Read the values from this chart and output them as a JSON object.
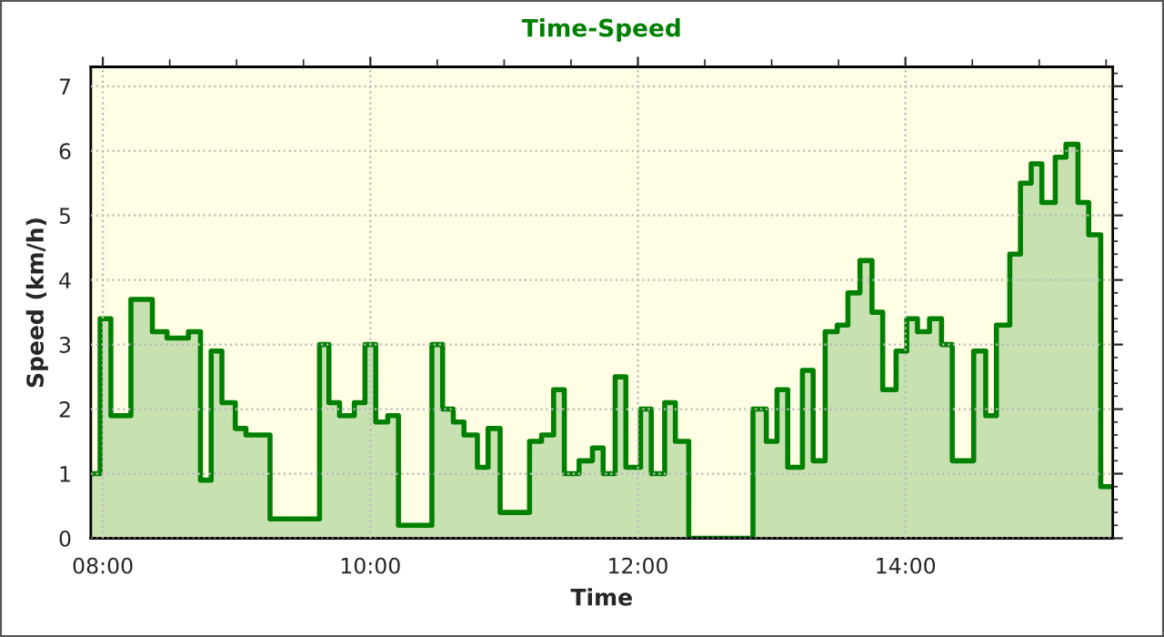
{
  "chart_data": {
    "type": "step",
    "title": "Time-Speed",
    "xlabel": "Time",
    "ylabel": "Speed (km/h)",
    "x": [
      7.91,
      7.98,
      8.06,
      8.21,
      8.37,
      8.48,
      8.56,
      8.64,
      8.73,
      8.81,
      8.89,
      8.99,
      9.07,
      9.25,
      9.62,
      9.69,
      9.77,
      9.88,
      9.96,
      10.04,
      10.13,
      10.21,
      10.46,
      10.54,
      10.62,
      10.7,
      10.8,
      10.88,
      10.97,
      11.19,
      11.28,
      11.37,
      11.45,
      11.56,
      11.66,
      11.74,
      11.83,
      11.91,
      12.02,
      12.1,
      12.2,
      12.28,
      12.38,
      12.86,
      12.96,
      13.04,
      13.12,
      13.23,
      13.31,
      13.4,
      13.49,
      13.57,
      13.66,
      13.75,
      13.83,
      13.93,
      14.01,
      14.09,
      14.18,
      14.27,
      14.35,
      14.51,
      14.6,
      14.68,
      14.78,
      14.86,
      14.94,
      15.02,
      15.12,
      15.2,
      15.29,
      15.37,
      15.46,
      15.55
    ],
    "series": [
      {
        "color": "#008000",
        "values": [
          1.0,
          3.4,
          1.9,
          3.7,
          3.2,
          3.1,
          3.1,
          3.2,
          0.9,
          2.9,
          2.1,
          1.7,
          1.6,
          0.3,
          3.0,
          2.1,
          1.9,
          2.1,
          3.0,
          1.8,
          1.9,
          0.2,
          3.0,
          2.0,
          1.8,
          1.6,
          1.1,
          1.7,
          0.4,
          1.5,
          1.6,
          2.3,
          1.0,
          1.2,
          1.4,
          1.0,
          2.5,
          1.1,
          2.0,
          1.0,
          2.1,
          1.5,
          0.0,
          2.0,
          1.5,
          2.3,
          1.1,
          2.6,
          1.2,
          3.2,
          3.3,
          3.8,
          4.3,
          3.5,
          2.3,
          2.9,
          3.4,
          3.2,
          3.4,
          3.0,
          1.2,
          2.9,
          1.9,
          3.3,
          4.4,
          5.5,
          5.8,
          5.2,
          5.9,
          6.1,
          5.2,
          4.7,
          0.8,
          0.8
        ]
      }
    ],
    "xlim": [
      7.91,
      15.55
    ],
    "ylim": [
      0,
      7.3
    ],
    "xticks": [
      {
        "value": 8,
        "label": "08:00"
      },
      {
        "value": 8.5,
        "label": null
      },
      {
        "value": 9,
        "label": null
      },
      {
        "value": 9.5,
        "label": null
      },
      {
        "value": 10,
        "label": "10:00"
      },
      {
        "value": 10.5,
        "label": null
      },
      {
        "value": 11,
        "label": null
      },
      {
        "value": 11.5,
        "label": null
      },
      {
        "value": 12,
        "label": "12:00"
      },
      {
        "value": 12.5,
        "label": null
      },
      {
        "value": 13,
        "label": null
      },
      {
        "value": 13.5,
        "label": null
      },
      {
        "value": 14,
        "label": "14:00"
      },
      {
        "value": 14.5,
        "label": null
      },
      {
        "value": 15,
        "label": null
      },
      {
        "value": 15.5,
        "label": null
      }
    ],
    "yticks": [
      0,
      1,
      2,
      3,
      4,
      5,
      6,
      7
    ],
    "grid": true,
    "line_style": "solid",
    "marker": "none",
    "legend": false
  }
}
